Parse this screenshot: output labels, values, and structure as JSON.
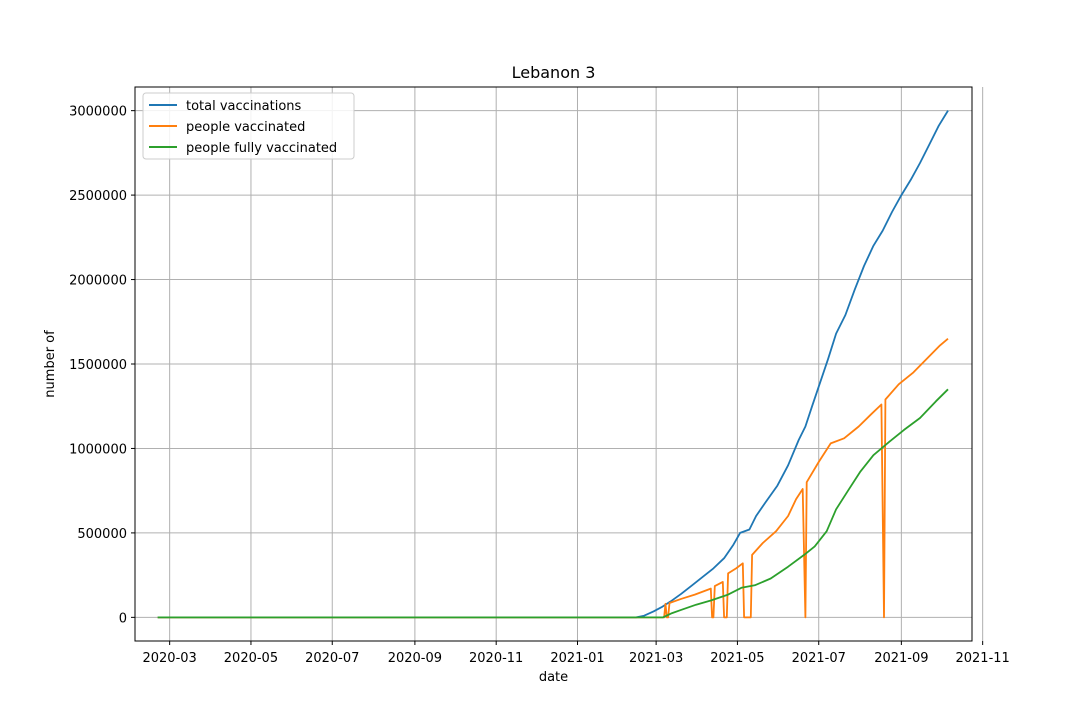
{
  "chart_data": {
    "type": "line",
    "title": "Lebanon 3",
    "xlabel": "date",
    "ylabel": "number of",
    "x_range": [
      "2020-02-04",
      "2021-10-24"
    ],
    "ylim": [
      -140000,
      3140000
    ],
    "x_ticks": [
      {
        "date": "2020-03-01",
        "label": "2020-03"
      },
      {
        "date": "2020-05-01",
        "label": "2020-05"
      },
      {
        "date": "2020-07-01",
        "label": "2020-07"
      },
      {
        "date": "2020-09-01",
        "label": "2020-09"
      },
      {
        "date": "2020-11-01",
        "label": "2020-11"
      },
      {
        "date": "2021-01-01",
        "label": "2021-01"
      },
      {
        "date": "2021-03-01",
        "label": "2021-03"
      },
      {
        "date": "2021-05-01",
        "label": "2021-05"
      },
      {
        "date": "2021-07-01",
        "label": "2021-07"
      },
      {
        "date": "2021-09-01",
        "label": "2021-09"
      },
      {
        "date": "2021-11-01",
        "label": "2021-11"
      }
    ],
    "y_ticks": [
      {
        "value": 0,
        "label": "0"
      },
      {
        "value": 500000,
        "label": "500000"
      },
      {
        "value": 1000000,
        "label": "1000000"
      },
      {
        "value": 1500000,
        "label": "1500000"
      },
      {
        "value": 2000000,
        "label": "2000000"
      },
      {
        "value": 2500000,
        "label": "2500000"
      },
      {
        "value": 3000000,
        "label": "3000000"
      }
    ],
    "grid": true,
    "legend_position": "top-left",
    "series": [
      {
        "name": "total vaccinations",
        "color": "#1f77b4",
        "points": [
          [
            "2020-02-21",
            0
          ],
          [
            "2021-02-14",
            0
          ],
          [
            "2021-02-20",
            10000
          ],
          [
            "2021-02-27",
            35000
          ],
          [
            "2021-03-05",
            60000
          ],
          [
            "2021-03-12",
            95000
          ],
          [
            "2021-03-20",
            140000
          ],
          [
            "2021-03-28",
            190000
          ],
          [
            "2021-04-05",
            240000
          ],
          [
            "2021-04-13",
            290000
          ],
          [
            "2021-04-21",
            350000
          ],
          [
            "2021-04-28",
            430000
          ],
          [
            "2021-05-03",
            500000
          ],
          [
            "2021-05-10",
            520000
          ],
          [
            "2021-05-15",
            600000
          ],
          [
            "2021-05-22",
            680000
          ],
          [
            "2021-05-31",
            780000
          ],
          [
            "2021-06-08",
            900000
          ],
          [
            "2021-06-16",
            1050000
          ],
          [
            "2021-06-21",
            1130000
          ],
          [
            "2021-06-26",
            1250000
          ],
          [
            "2021-07-02",
            1390000
          ],
          [
            "2021-07-08",
            1530000
          ],
          [
            "2021-07-14",
            1680000
          ],
          [
            "2021-07-21",
            1790000
          ],
          [
            "2021-07-28",
            1940000
          ],
          [
            "2021-08-04",
            2080000
          ],
          [
            "2021-08-11",
            2200000
          ],
          [
            "2021-08-18",
            2290000
          ],
          [
            "2021-08-25",
            2400000
          ],
          [
            "2021-09-01",
            2500000
          ],
          [
            "2021-09-08",
            2590000
          ],
          [
            "2021-09-15",
            2690000
          ],
          [
            "2021-09-22",
            2800000
          ],
          [
            "2021-09-29",
            2910000
          ],
          [
            "2021-10-06",
            3000000
          ]
        ]
      },
      {
        "name": "people vaccinated",
        "color": "#ff7f0e",
        "points": [
          [
            "2020-02-21",
            0
          ],
          [
            "2021-03-07",
            0
          ],
          [
            "2021-03-08",
            80000
          ],
          [
            "2021-03-09",
            0
          ],
          [
            "2021-03-10",
            0
          ],
          [
            "2021-03-11",
            85000
          ],
          [
            "2021-03-20",
            110000
          ],
          [
            "2021-03-30",
            135000
          ],
          [
            "2021-04-11",
            170000
          ],
          [
            "2021-04-12",
            0
          ],
          [
            "2021-04-13",
            0
          ],
          [
            "2021-04-14",
            185000
          ],
          [
            "2021-04-20",
            210000
          ],
          [
            "2021-04-21",
            0
          ],
          [
            "2021-04-23",
            0
          ],
          [
            "2021-04-24",
            260000
          ],
          [
            "2021-04-30",
            290000
          ],
          [
            "2021-05-05",
            320000
          ],
          [
            "2021-05-06",
            0
          ],
          [
            "2021-05-11",
            0
          ],
          [
            "2021-05-12",
            370000
          ],
          [
            "2021-05-20",
            440000
          ],
          [
            "2021-05-30",
            510000
          ],
          [
            "2021-06-08",
            600000
          ],
          [
            "2021-06-14",
            700000
          ],
          [
            "2021-06-19",
            760000
          ],
          [
            "2021-06-21",
            0
          ],
          [
            "2021-06-22",
            800000
          ],
          [
            "2021-07-01",
            920000
          ],
          [
            "2021-07-10",
            1030000
          ],
          [
            "2021-07-20",
            1060000
          ],
          [
            "2021-07-31",
            1130000
          ],
          [
            "2021-08-09",
            1200000
          ],
          [
            "2021-08-17",
            1260000
          ],
          [
            "2021-08-19",
            0
          ],
          [
            "2021-08-20",
            1290000
          ],
          [
            "2021-08-30",
            1380000
          ],
          [
            "2021-09-10",
            1450000
          ],
          [
            "2021-09-20",
            1530000
          ],
          [
            "2021-09-30",
            1610000
          ],
          [
            "2021-10-06",
            1650000
          ]
        ]
      },
      {
        "name": "people fully vaccinated",
        "color": "#2ca02c",
        "points": [
          [
            "2020-02-21",
            0
          ],
          [
            "2021-03-06",
            0
          ],
          [
            "2021-03-13",
            25000
          ],
          [
            "2021-03-20",
            45000
          ],
          [
            "2021-03-31",
            75000
          ],
          [
            "2021-04-11",
            100000
          ],
          [
            "2021-04-24",
            135000
          ],
          [
            "2021-05-04",
            175000
          ],
          [
            "2021-05-14",
            190000
          ],
          [
            "2021-05-26",
            230000
          ],
          [
            "2021-06-08",
            300000
          ],
          [
            "2021-06-20",
            370000
          ],
          [
            "2021-06-28",
            420000
          ],
          [
            "2021-07-07",
            510000
          ],
          [
            "2021-07-14",
            640000
          ],
          [
            "2021-07-23",
            750000
          ],
          [
            "2021-08-01",
            860000
          ],
          [
            "2021-08-11",
            960000
          ],
          [
            "2021-08-23",
            1040000
          ],
          [
            "2021-09-03",
            1110000
          ],
          [
            "2021-09-15",
            1180000
          ],
          [
            "2021-09-27",
            1280000
          ],
          [
            "2021-10-06",
            1350000
          ]
        ]
      }
    ]
  }
}
